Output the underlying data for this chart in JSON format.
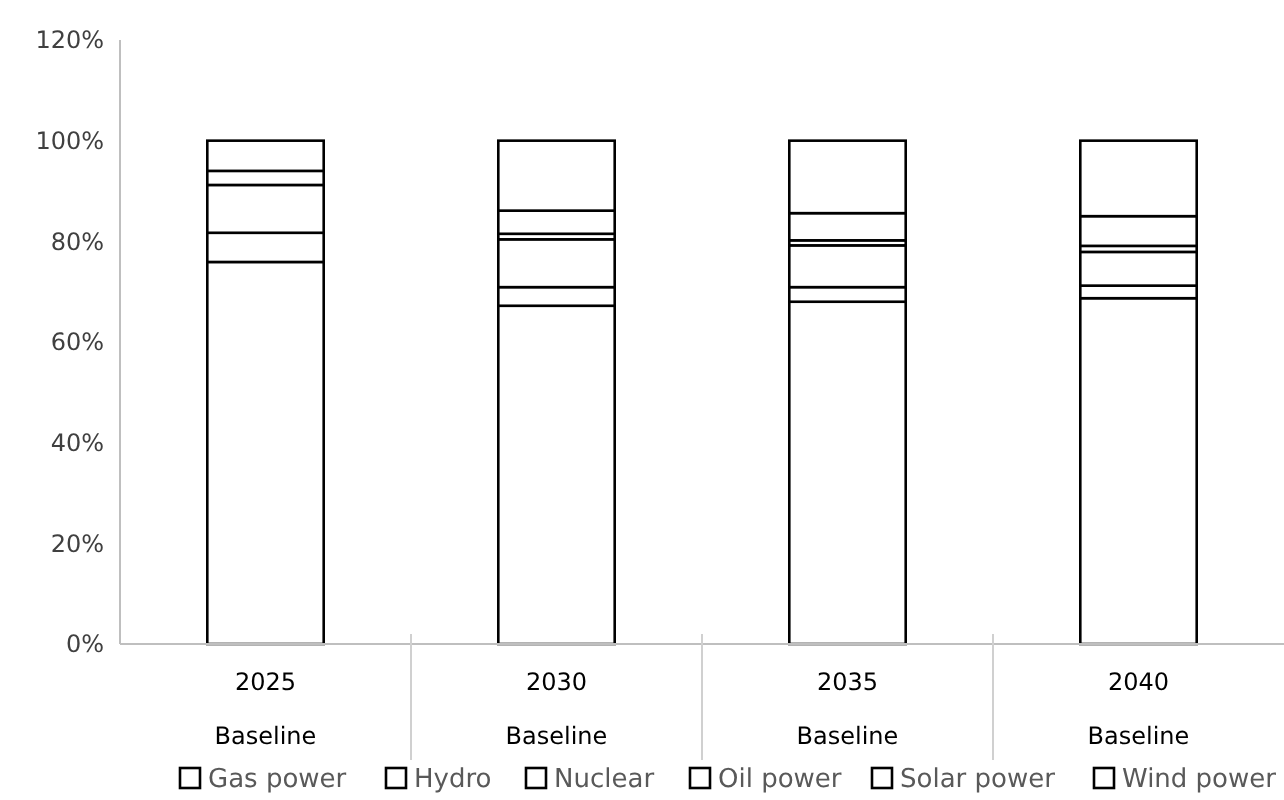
{
  "chart_data": {
    "type": "bar",
    "stacked": true,
    "categories": [
      "2025\nBaseline",
      "2030\nBaseline",
      "2035\nBaseline",
      "2040\nBaseline"
    ],
    "series": [
      {
        "name": "Gas power",
        "color": "#ffffff",
        "values": [
          75.9,
          67.2,
          68.0,
          68.7
        ]
      },
      {
        "name": "Hydro",
        "color": "#ffffff",
        "values": [
          5.8,
          3.7,
          2.9,
          2.5
        ]
      },
      {
        "name": "Nuclear",
        "color": "#ffffff",
        "values": [
          null,
          9.5,
          8.3,
          6.7
        ]
      },
      {
        "name": "Oil power",
        "color": "#ffffff",
        "values": [
          9.5,
          1.1,
          1.0,
          1.2
        ]
      },
      {
        "name": "Solar power",
        "color": "#ffffff",
        "values": [
          2.8,
          4.6,
          5.4,
          5.9
        ]
      },
      {
        "name": "Wind power",
        "color": "#ffffff",
        "values": [
          6.0,
          13.9,
          14.4,
          15.0
        ]
      }
    ],
    "ylim": [
      0,
      120
    ],
    "yticks": [
      {
        "value": 0,
        "label": "0%"
      },
      {
        "value": 20,
        "label": "20%"
      },
      {
        "value": 40,
        "label": "40%"
      },
      {
        "value": 60,
        "label": "60%"
      },
      {
        "value": 80,
        "label": "80%"
      },
      {
        "value": 100,
        "label": "100%"
      },
      {
        "value": 120,
        "label": "120%"
      }
    ],
    "grid": false,
    "legend": "bottom"
  }
}
